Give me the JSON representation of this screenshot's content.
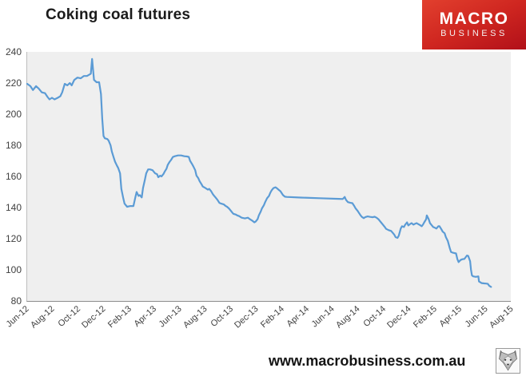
{
  "page": {
    "title": "Coking coal futures",
    "footer_url": "www.macrobusiness.com.au"
  },
  "logo": {
    "line1": "MACRO",
    "line2": "BUSINESS",
    "bg_color": "#c41a1e",
    "text_color": "#ffffff"
  },
  "chart_data": {
    "type": "line",
    "title": "Coking coal futures",
    "xlabel": "",
    "ylabel": "",
    "ylim": [
      80,
      240
    ],
    "ytick_step": 20,
    "ytick_labels": [
      "240",
      "220",
      "200",
      "180",
      "160",
      "140",
      "120",
      "100",
      "80"
    ],
    "xtick_labels": [
      "Jun-12",
      "Aug-12",
      "Oct-12",
      "Dec-12",
      "Feb-13",
      "Apr-13",
      "Jun-13",
      "Aug-13",
      "Oct-13",
      "Dec-13",
      "Feb-14",
      "Apr-14",
      "Jun-14",
      "Aug-14",
      "Oct-14",
      "Dec-14",
      "Feb-15",
      "Apr-15",
      "Jun-15",
      "Aug-15"
    ],
    "x_axis_span_months": 38,
    "x_encoding": "months after Jun-2012, ticks every 2 months",
    "grid": false,
    "legend": "none",
    "plot_bg": "#efefef",
    "line_color": "#5b9bd5",
    "series": [
      {
        "name": "Coking coal futures price",
        "points": [
          [
            0,
            219.5
          ],
          [
            0.25,
            218
          ],
          [
            0.45,
            215.5
          ],
          [
            0.7,
            218
          ],
          [
            0.9,
            216.5
          ],
          [
            1.15,
            214
          ],
          [
            1.4,
            213.5
          ],
          [
            1.6,
            211
          ],
          [
            1.75,
            209.5
          ],
          [
            1.95,
            210.5
          ],
          [
            2.15,
            209.5
          ],
          [
            2.4,
            210.5
          ],
          [
            2.6,
            211.5
          ],
          [
            2.75,
            214
          ],
          [
            2.95,
            219.5
          ],
          [
            3.15,
            218.5
          ],
          [
            3.35,
            220
          ],
          [
            3.5,
            218.5
          ],
          [
            3.7,
            222
          ],
          [
            3.95,
            223.5
          ],
          [
            4.2,
            223
          ],
          [
            4.45,
            224.5
          ],
          [
            4.7,
            224.5
          ],
          [
            4.9,
            225.5
          ],
          [
            5.0,
            226
          ],
          [
            5.1,
            235.5
          ],
          [
            5.25,
            222
          ],
          [
            5.45,
            220.5
          ],
          [
            5.65,
            220.5
          ],
          [
            5.8,
            213
          ],
          [
            5.9,
            197
          ],
          [
            6.0,
            186
          ],
          [
            6.1,
            184.5
          ],
          [
            6.3,
            184
          ],
          [
            6.4,
            183
          ],
          [
            6.55,
            180
          ],
          [
            6.65,
            176
          ],
          [
            6.8,
            172
          ],
          [
            6.9,
            169.5
          ],
          [
            7.05,
            167
          ],
          [
            7.15,
            165.5
          ],
          [
            7.3,
            162
          ],
          [
            7.4,
            152
          ],
          [
            7.55,
            146
          ],
          [
            7.65,
            142.5
          ],
          [
            7.85,
            140.5
          ],
          [
            8.1,
            141
          ],
          [
            8.35,
            141
          ],
          [
            8.5,
            146.5
          ],
          [
            8.6,
            150
          ],
          [
            8.75,
            147.5
          ],
          [
            8.85,
            148
          ],
          [
            9.0,
            146.5
          ],
          [
            9.1,
            152.5
          ],
          [
            9.25,
            158
          ],
          [
            9.35,
            162
          ],
          [
            9.5,
            164.5
          ],
          [
            9.65,
            164.5
          ],
          [
            9.85,
            164
          ],
          [
            10.05,
            162
          ],
          [
            10.2,
            161.5
          ],
          [
            10.3,
            159.5
          ],
          [
            10.45,
            160.5
          ],
          [
            10.55,
            160
          ],
          [
            10.7,
            161.5
          ],
          [
            10.8,
            163
          ],
          [
            10.95,
            165
          ],
          [
            11.05,
            167.5
          ],
          [
            11.2,
            169.5
          ],
          [
            11.3,
            170.5
          ],
          [
            11.45,
            172.5
          ],
          [
            11.6,
            173
          ],
          [
            11.85,
            173.5
          ],
          [
            12.1,
            173.5
          ],
          [
            12.35,
            173
          ],
          [
            12.55,
            172.8
          ],
          [
            12.7,
            172.5
          ],
          [
            12.8,
            170
          ],
          [
            12.95,
            168
          ],
          [
            13.05,
            166.5
          ],
          [
            13.2,
            164
          ],
          [
            13.3,
            160.5
          ],
          [
            13.45,
            158.8
          ],
          [
            13.55,
            157
          ],
          [
            13.7,
            155
          ],
          [
            13.8,
            153.5
          ],
          [
            13.95,
            152.8
          ],
          [
            14.1,
            152
          ],
          [
            14.2,
            151.5
          ],
          [
            14.3,
            152
          ],
          [
            14.45,
            150.5
          ],
          [
            14.6,
            148.5
          ],
          [
            14.7,
            147.5
          ],
          [
            14.8,
            146.5
          ],
          [
            14.95,
            145
          ],
          [
            15.1,
            143
          ],
          [
            15.25,
            142.5
          ],
          [
            15.45,
            142
          ],
          [
            15.6,
            141
          ],
          [
            15.7,
            140.5
          ],
          [
            15.85,
            139.5
          ],
          [
            15.95,
            138.5
          ],
          [
            16.1,
            137
          ],
          [
            16.2,
            136
          ],
          [
            16.4,
            135.5
          ],
          [
            16.5,
            135
          ],
          [
            16.65,
            134.5
          ],
          [
            16.85,
            133.5
          ],
          [
            17.1,
            133
          ],
          [
            17.35,
            133.5
          ],
          [
            17.5,
            132.5
          ],
          [
            17.7,
            131.5
          ],
          [
            17.85,
            130.5
          ],
          [
            17.95,
            131
          ],
          [
            18.1,
            132.5
          ],
          [
            18.2,
            135
          ],
          [
            18.35,
            137.5
          ],
          [
            18.45,
            139.5
          ],
          [
            18.6,
            141.5
          ],
          [
            18.7,
            143.5
          ],
          [
            18.85,
            146
          ],
          [
            19.0,
            147.5
          ],
          [
            19.1,
            149.5
          ],
          [
            19.2,
            151
          ],
          [
            19.35,
            152.5
          ],
          [
            19.5,
            153
          ],
          [
            19.6,
            152.5
          ],
          [
            19.75,
            151.5
          ],
          [
            19.9,
            150.5
          ],
          [
            20.1,
            148
          ],
          [
            20.25,
            147
          ],
          [
            20.4,
            146.8
          ],
          [
            21.5,
            146.4
          ],
          [
            23.0,
            146
          ],
          [
            24.5,
            145.6
          ],
          [
            24.8,
            145.5
          ],
          [
            24.95,
            146.8
          ],
          [
            25.05,
            145
          ],
          [
            25.2,
            143.5
          ],
          [
            25.4,
            143
          ],
          [
            25.55,
            142.8
          ],
          [
            25.7,
            141
          ],
          [
            25.8,
            139.5
          ],
          [
            25.95,
            138
          ],
          [
            26.05,
            136.8
          ],
          [
            26.2,
            135
          ],
          [
            26.3,
            134
          ],
          [
            26.45,
            133.2
          ],
          [
            26.55,
            133.8
          ],
          [
            26.75,
            134.3
          ],
          [
            26.95,
            134
          ],
          [
            27.15,
            133.8
          ],
          [
            27.3,
            134.1
          ],
          [
            27.45,
            133.5
          ],
          [
            27.6,
            132.5
          ],
          [
            27.7,
            131.5
          ],
          [
            27.85,
            130
          ],
          [
            27.95,
            129
          ],
          [
            28.1,
            127.5
          ],
          [
            28.2,
            126.3
          ],
          [
            28.4,
            125.5
          ],
          [
            28.6,
            125
          ],
          [
            28.7,
            124
          ],
          [
            28.85,
            122.5
          ],
          [
            28.95,
            121
          ],
          [
            29.1,
            120.5
          ],
          [
            29.2,
            122
          ],
          [
            29.35,
            126.5
          ],
          [
            29.45,
            128
          ],
          [
            29.6,
            127.5
          ],
          [
            29.7,
            129
          ],
          [
            29.85,
            130.5
          ],
          [
            29.95,
            128.5
          ],
          [
            30.1,
            129.5
          ],
          [
            30.2,
            130
          ],
          [
            30.35,
            129
          ],
          [
            30.45,
            129.5
          ],
          [
            30.6,
            130
          ],
          [
            30.7,
            129.5
          ],
          [
            30.85,
            128.8
          ],
          [
            31.0,
            128
          ],
          [
            31.1,
            129
          ],
          [
            31.2,
            130.5
          ],
          [
            31.35,
            132.5
          ],
          [
            31.4,
            135
          ],
          [
            31.55,
            132.5
          ],
          [
            31.65,
            130
          ],
          [
            31.8,
            128.5
          ],
          [
            31.9,
            127.5
          ],
          [
            32.05,
            127
          ],
          [
            32.15,
            126.5
          ],
          [
            32.3,
            128
          ],
          [
            32.4,
            128
          ],
          [
            32.55,
            126
          ],
          [
            32.65,
            124.5
          ],
          [
            32.8,
            123.5
          ],
          [
            32.9,
            121
          ],
          [
            33.05,
            118.5
          ],
          [
            33.2,
            114
          ],
          [
            33.3,
            111.5
          ],
          [
            33.45,
            111
          ],
          [
            33.55,
            110.8
          ],
          [
            33.7,
            110.5
          ],
          [
            33.8,
            107
          ],
          [
            33.9,
            105
          ],
          [
            34.05,
            106.3
          ],
          [
            34.2,
            106.8
          ],
          [
            34.35,
            107
          ],
          [
            34.55,
            109.2
          ],
          [
            34.65,
            108.9
          ],
          [
            34.8,
            105.5
          ],
          [
            34.87,
            100
          ],
          [
            34.95,
            96.4
          ],
          [
            35.05,
            95.8
          ],
          [
            35.25,
            95.5
          ],
          [
            35.45,
            95.8
          ],
          [
            35.5,
            92.5
          ],
          [
            35.7,
            91.5
          ],
          [
            35.9,
            91.3
          ],
          [
            36.05,
            91.2
          ],
          [
            36.2,
            91
          ],
          [
            36.3,
            89.8
          ],
          [
            36.45,
            89
          ]
        ]
      }
    ]
  }
}
